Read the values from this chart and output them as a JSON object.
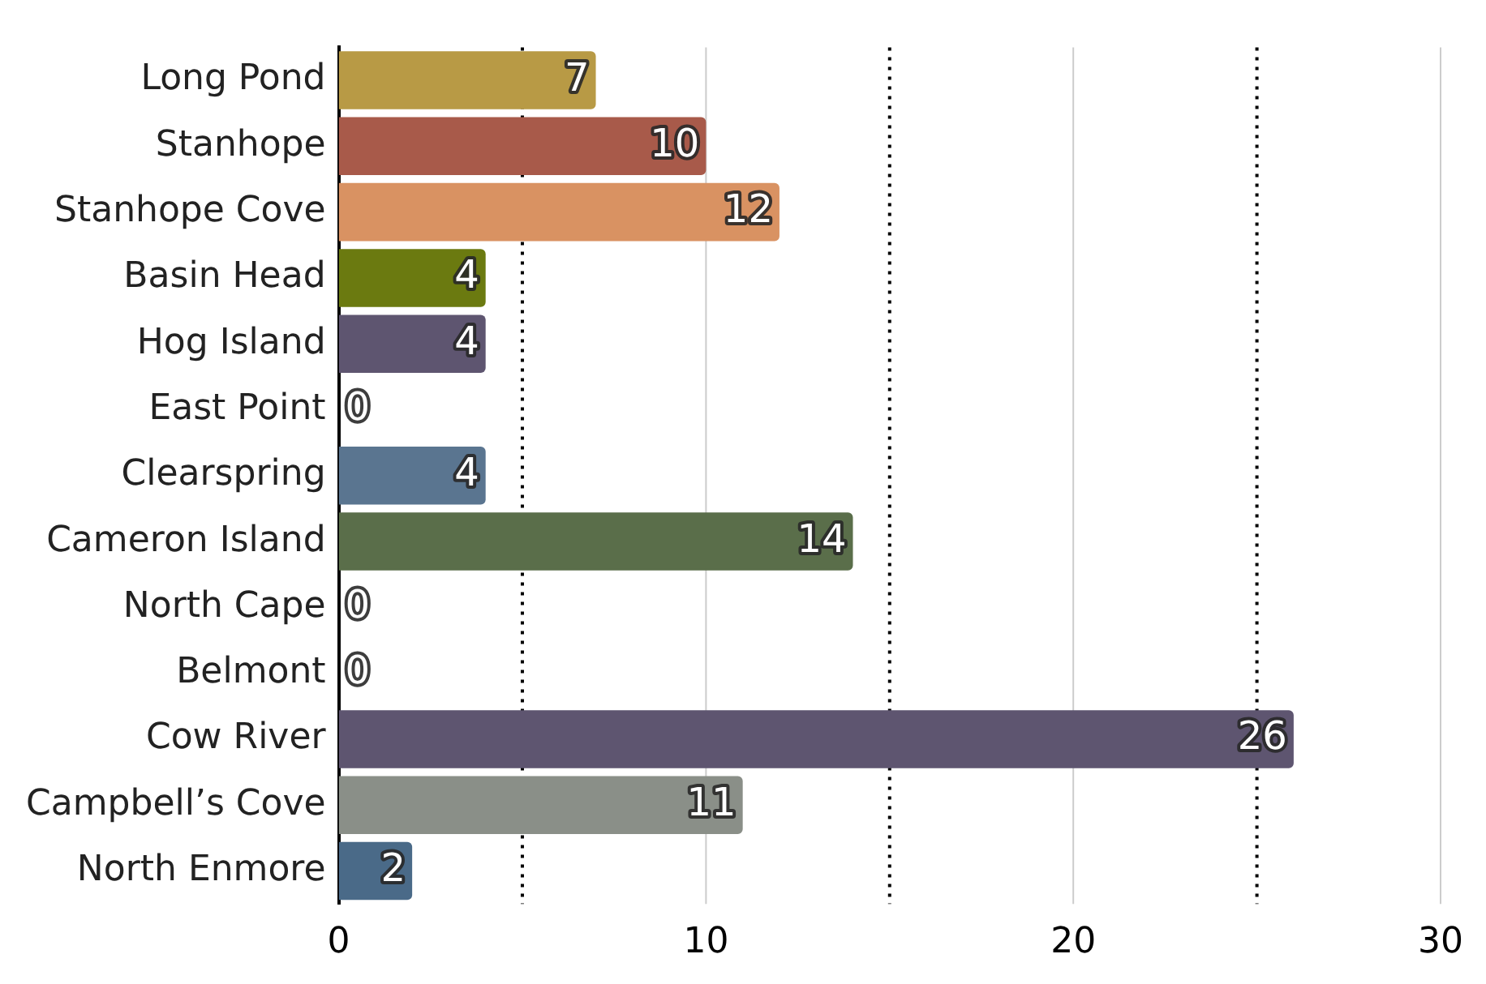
{
  "chart_data": {
    "type": "bar",
    "orientation": "horizontal",
    "categories": [
      "Long Pond",
      "Stanhope",
      "Stanhope Cove",
      "Basin Head",
      "Hog Island",
      "East Point",
      "Clearspring",
      "Cameron Island",
      "North Cape",
      "Belmont",
      "Cow River",
      "Campbell’s Cove",
      "North Enmore"
    ],
    "values": [
      7,
      10,
      12,
      4,
      4,
      0,
      4,
      14,
      0,
      0,
      26,
      11,
      2
    ],
    "colors": [
      "#b89a45",
      "#a85a4a",
      "#d99262",
      "#6b7a10",
      "#5e5570",
      "#8a8f88",
      "#5a7590",
      "#5a6e4a",
      "#8a8f88",
      "#8a8f88",
      "#5e5570",
      "#8a8f88",
      "#4a6a88"
    ],
    "xlim": [
      0,
      30
    ],
    "xticks": [
      0,
      {
        "value": 5,
        "label": null
      },
      10,
      {
        "value": 15,
        "label": null
      },
      20,
      {
        "value": 25,
        "label": null
      },
      30
    ],
    "grid": "x",
    "data_labels": true,
    "legend": false
  }
}
